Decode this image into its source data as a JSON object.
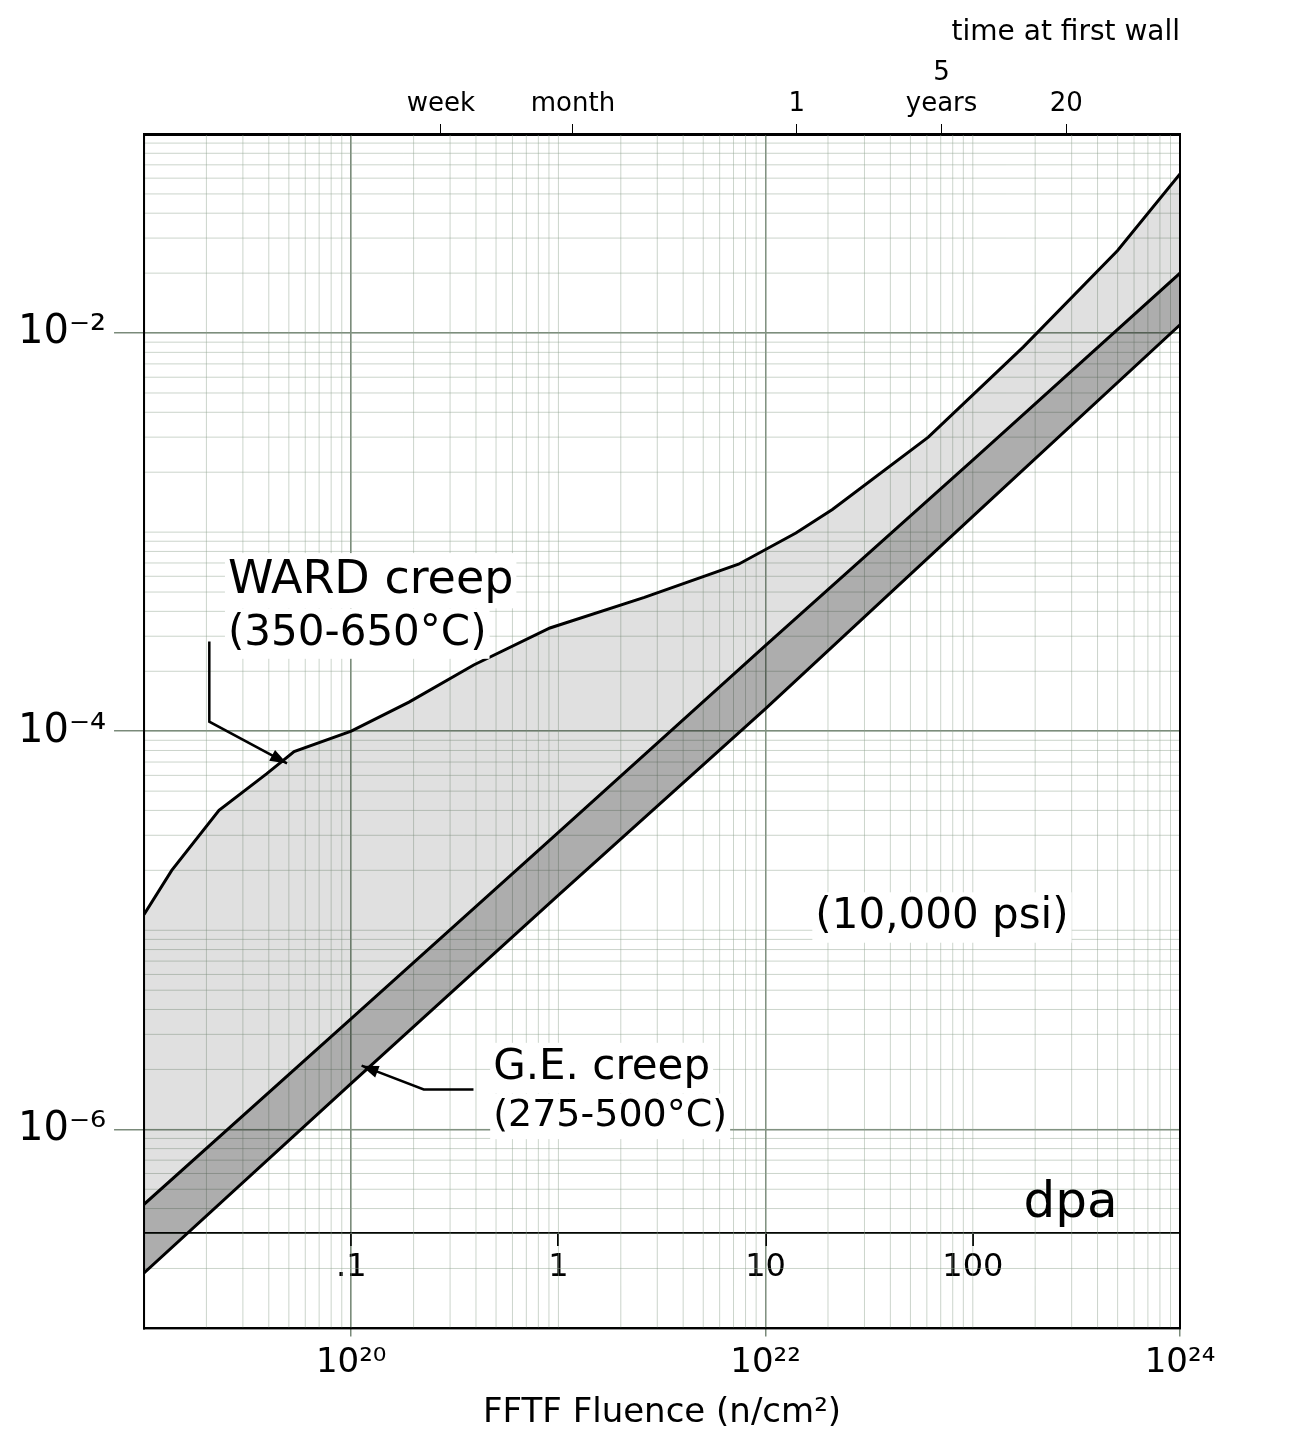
{
  "chart_data": {
    "type": "line",
    "x_label": "FFTF Fluence (n/cm²)",
    "x2_label": "time at first wall",
    "x3_label": "dpa",
    "xlim": [
      1e+19,
      1e+24
    ],
    "xticks": [
      {
        "value": 1e+20,
        "label": "10²⁰"
      },
      {
        "value": 1e+22,
        "label": "10²²"
      },
      {
        "value": 1e+24,
        "label": "10²⁴"
      }
    ],
    "x2lim": [
      0.00071,
      70.7
    ],
    "x2ticks": [
      {
        "value": 0.0192,
        "label": "week"
      },
      {
        "value": 0.0833,
        "label": "month"
      },
      1,
      {
        "value": 5,
        "label": "5 years"
      },
      20
    ],
    "x3lim": [
      0.01,
      1000
    ],
    "x3ticks": [
      {
        "value": 0.1,
        "label": ".1"
      },
      1,
      10,
      100
    ],
    "ylim": [
      1e-07,
      0.1
    ],
    "yticks": [
      {
        "value": 0.01,
        "label": "10⁻²"
      },
      {
        "value": 0.0001,
        "label": "10⁻⁴"
      },
      {
        "value": 1e-06,
        "label": "10⁻⁶"
      }
    ],
    "log": true,
    "grid": true,
    "series": [
      {
        "name": "WARD creep",
        "range_label": "(350-650°C)",
        "color": "#000000",
        "x": [
          1e+19,
          1.36e+19,
          2.3e+19,
          3.9e+19,
          5.3e+19,
          1e+20,
          1.9e+20,
          3.9e+20,
          9.1e+20,
          2.6e+21,
          7.4e+21,
          1.4e+22,
          2.1e+22,
          6.1e+22,
          1.75e+23,
          5e+23,
          1e+24
        ],
        "values": [
          1.2e-05,
          2e-05,
          4e-05,
          6.1e-05,
          7.9e-05,
          0.0001,
          0.00014,
          0.000215,
          0.00033,
          0.00047,
          0.00069,
          0.00099,
          0.0013,
          0.003,
          0.0085,
          0.026,
          0.063
        ]
      },
      {
        "name": "G.E. creep",
        "range_label": "(275-500°C)",
        "color": "#000000",
        "x": [
          1e+19,
          1e+20,
          1e+21,
          1e+22,
          1e+23,
          1e+24
        ],
        "values": [
          4.2e-07,
          3.6e-06,
          3.1e-05,
          0.00027,
          0.0023,
          0.02
        ],
        "lower": [
          1.9e-07,
          1.7e-06,
          1.5e-05,
          0.00013,
          0.0012,
          0.011
        ]
      }
    ],
    "annotations": [
      "(10,000 psi)"
    ]
  }
}
